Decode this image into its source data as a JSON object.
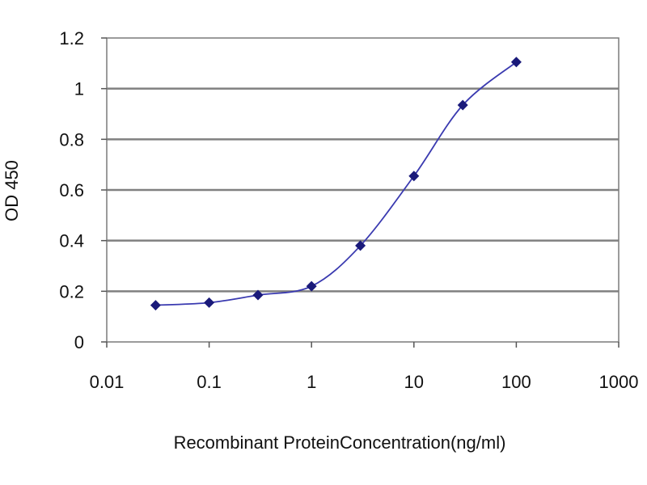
{
  "chart_data": {
    "type": "line",
    "title": "",
    "xlabel": "Recombinant ProteinConcentration(ng/ml)",
    "ylabel": "OD 450",
    "x_scale": "log",
    "xlim": [
      0.01,
      1000
    ],
    "ylim": [
      0,
      1.2
    ],
    "x_ticks": [
      "0.01",
      "0.1",
      "1",
      "10",
      "100",
      "1000"
    ],
    "y_ticks": [
      "0",
      "0.2",
      "0.4",
      "0.6",
      "0.8",
      "1",
      "1.2"
    ],
    "grid": "horizontal",
    "legend": "none",
    "series": [
      {
        "x": [
          0.03,
          0.1,
          0.3,
          1,
          3,
          10,
          30,
          100
        ],
        "y": [
          0.145,
          0.155,
          0.185,
          0.22,
          0.38,
          0.655,
          0.935,
          1.105
        ]
      }
    ],
    "colors": {
      "line": "#3a3ab0",
      "marker": "#1a1a7a",
      "grid": "#808080",
      "plot_background": "#ffffff"
    }
  }
}
